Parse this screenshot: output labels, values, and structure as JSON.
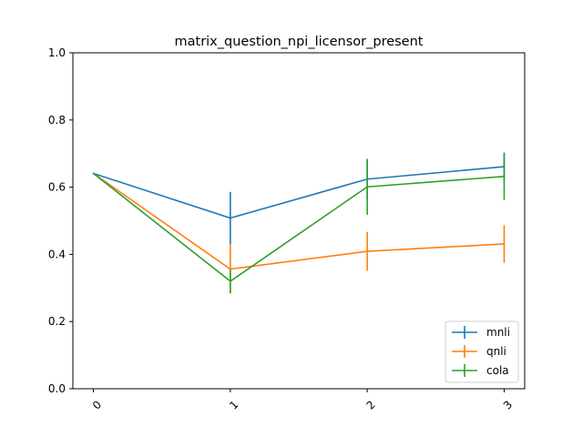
{
  "chart_data": {
    "type": "line",
    "title": "matrix_question_npi_licensor_present",
    "xlabel": "",
    "ylabel": "",
    "x": [
      0,
      1,
      2,
      3
    ],
    "x_tick_labels": [
      "0",
      "1",
      "2",
      "3"
    ],
    "y_tick_labels": [
      "0.0",
      "0.2",
      "0.4",
      "0.6",
      "0.8",
      "1.0"
    ],
    "xlim": [
      -0.15,
      3.15
    ],
    "ylim": [
      0.0,
      1.0
    ],
    "grid": false,
    "legend_position": "lower-right",
    "series": [
      {
        "name": "mnli",
        "color": "#1f77b4",
        "values": [
          0.641,
          0.508,
          0.624,
          0.661
        ],
        "errors": [
          0.0,
          0.078,
          0.06,
          0.042
        ]
      },
      {
        "name": "qnli",
        "color": "#ff7f0e",
        "values": [
          0.641,
          0.356,
          0.409,
          0.431
        ],
        "errors": [
          0.0,
          0.073,
          0.058,
          0.056
        ]
      },
      {
        "name": "cola",
        "color": "#2ca02c",
        "values": [
          0.641,
          0.32,
          0.601,
          0.632
        ],
        "errors": [
          0.0,
          0.035,
          0.083,
          0.07
        ]
      }
    ]
  }
}
